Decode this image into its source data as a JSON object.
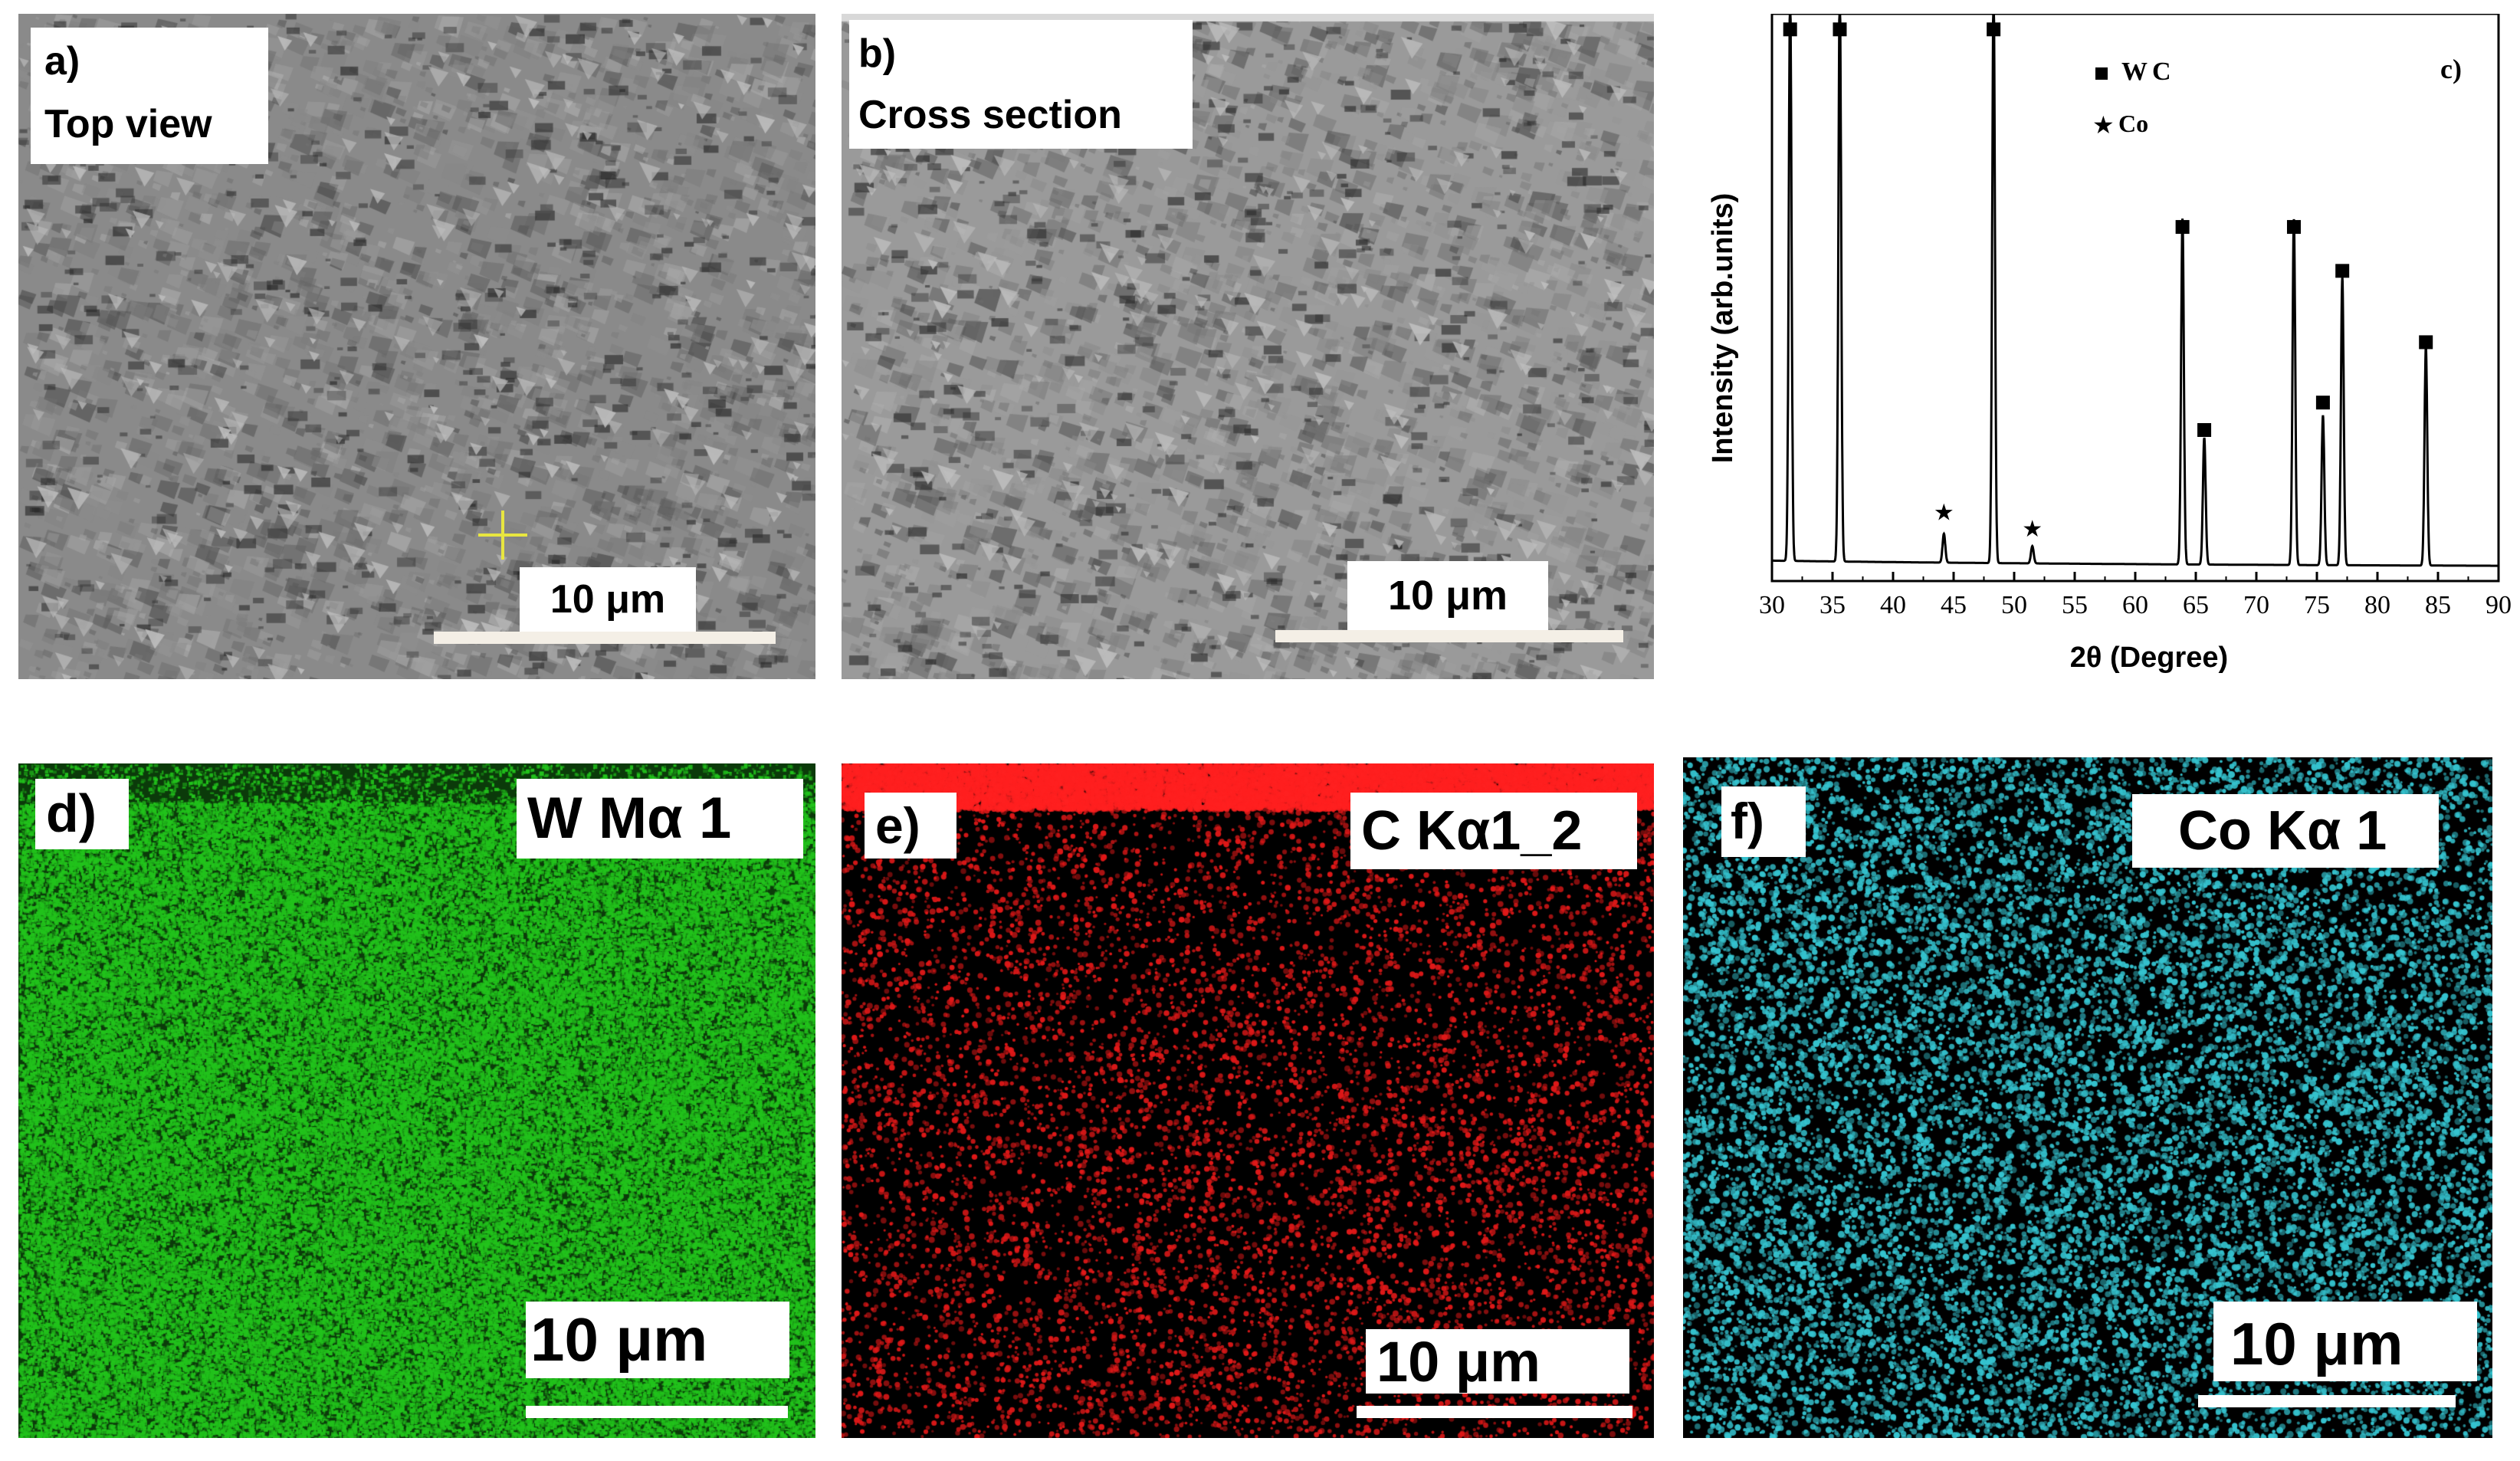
{
  "panels": {
    "a": {
      "letter": "a)",
      "caption": "Top view",
      "scale": "10 μm"
    },
    "b": {
      "letter": "b)",
      "caption": "Cross section",
      "scale": "10 μm"
    },
    "d": {
      "letter": "d)",
      "element": "W Mα 1",
      "scale": "10 μm",
      "color": "#22c31c"
    },
    "e": {
      "letter": "e)",
      "element": "C Kα1_2",
      "scale": "10 μm",
      "color": "#e01818"
    },
    "f": {
      "letter": "f)",
      "element": "Co Kα 1",
      "scale": "10 μm",
      "color": "#35c3cf"
    }
  },
  "chart_data": {
    "type": "line",
    "panel_label": "c)",
    "xlabel": "2θ (Degree)",
    "ylabel": "Intensity (arb.units)",
    "xlim": [
      30,
      90
    ],
    "x_ticks": [
      30,
      35,
      40,
      45,
      50,
      55,
      60,
      65,
      70,
      75,
      80,
      85,
      90
    ],
    "legend": [
      {
        "marker": "square",
        "name": "WC"
      },
      {
        "marker": "star",
        "name": "Co"
      }
    ],
    "series": [
      {
        "peaks_2theta": [
          31.5,
          35.6,
          44.2,
          48.3,
          51.5,
          63.9,
          65.7,
          73.1,
          75.5,
          77.1,
          84.0
        ],
        "relative_heights": [
          1.0,
          1.0,
          0.05,
          1.0,
          0.03,
          0.6,
          0.22,
          0.6,
          0.26,
          0.5,
          0.38
        ]
      }
    ],
    "markers": [
      {
        "x": 31.5,
        "y_frac": 0.98,
        "type": "square"
      },
      {
        "x": 35.6,
        "y_frac": 0.98,
        "type": "square"
      },
      {
        "x": 48.3,
        "y_frac": 0.98,
        "type": "square"
      },
      {
        "x": 44.2,
        "y_frac": 0.1,
        "type": "star"
      },
      {
        "x": 51.5,
        "y_frac": 0.07,
        "type": "star"
      },
      {
        "x": 63.9,
        "y_frac": 0.62,
        "type": "square"
      },
      {
        "x": 65.7,
        "y_frac": 0.25,
        "type": "square"
      },
      {
        "x": 73.1,
        "y_frac": 0.62,
        "type": "square"
      },
      {
        "x": 75.5,
        "y_frac": 0.3,
        "type": "square"
      },
      {
        "x": 77.1,
        "y_frac": 0.54,
        "type": "square"
      },
      {
        "x": 84.0,
        "y_frac": 0.41,
        "type": "square"
      }
    ]
  }
}
